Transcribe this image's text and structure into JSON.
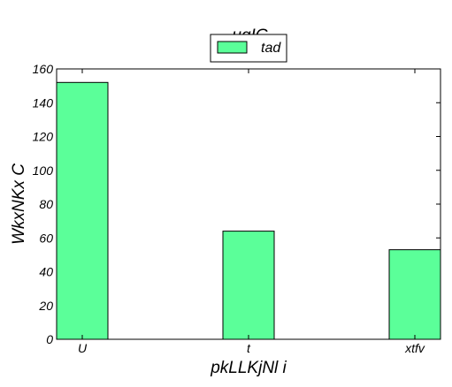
{
  "chart_data": {
    "type": "bar",
    "title": "uqIG",
    "xlabel": "pkLLKjNl i",
    "ylabel": "WkxNKx C",
    "categories": [
      "U",
      "t",
      "xtfv"
    ],
    "series": [
      {
        "name": "tad",
        "values": [
          152,
          64,
          53
        ],
        "color": "#5bff99"
      }
    ],
    "ylim": [
      0,
      160
    ],
    "yticks": [
      0,
      20,
      40,
      60,
      80,
      100,
      120,
      140,
      160
    ],
    "grid": false,
    "legend": "top-center"
  }
}
